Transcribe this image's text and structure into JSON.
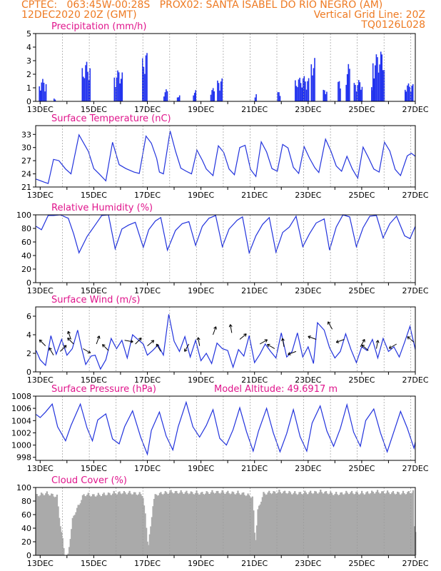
{
  "header": {
    "line1_left": "CPTEC:   063:45W-00:28S   PROX02: SANTA ISABEL DO RIO NEGRO (AM)",
    "line2_left": "12DEC2020 20Z (GMT)",
    "line2_right": "Vertical Grid Line: 20Z",
    "line3_right": "TQ0126L028"
  },
  "colors": {
    "header": "#ee7a22",
    "title": "#e0158c",
    "line": "#2233dd",
    "bar": "#2233ee",
    "cloud": "#aaaaaa",
    "grid": "#9a9a9a"
  },
  "x_ticks": [
    "13DEC",
    "15DEC",
    "17DEC",
    "19DEC",
    "21DEC",
    "23DEC",
    "25DEC",
    "27DEC"
  ],
  "chart_data": [
    {
      "type": "bar",
      "title": "Precipitation (mm/h)",
      "ylim": [
        0,
        5
      ],
      "yticks": [
        "0",
        "1",
        "2",
        "3",
        "4",
        "5"
      ],
      "x_range_days": [
        12.833,
        27.0
      ],
      "bursts": [
        [
          12.95,
          13.2,
          1.7
        ],
        [
          13.5,
          13.55,
          0.3
        ],
        [
          14.55,
          14.85,
          3.0
        ],
        [
          15.75,
          16.05,
          2.4
        ],
        [
          16.8,
          17.0,
          3.8
        ],
        [
          17.6,
          17.75,
          0.9
        ],
        [
          18.1,
          18.2,
          0.5
        ],
        [
          18.7,
          18.8,
          0.9
        ],
        [
          19.35,
          19.5,
          1.0
        ],
        [
          19.6,
          19.8,
          1.8
        ],
        [
          21.0,
          21.05,
          0.7
        ],
        [
          21.85,
          21.95,
          0.8
        ],
        [
          22.5,
          23.0,
          1.9
        ],
        [
          23.1,
          23.25,
          3.5
        ],
        [
          23.55,
          23.7,
          1.0
        ],
        [
          24.1,
          24.2,
          1.7
        ],
        [
          24.4,
          24.55,
          2.8
        ],
        [
          24.7,
          25.0,
          1.6
        ],
        [
          25.35,
          25.45,
          1.3
        ],
        [
          25.4,
          25.85,
          3.8
        ],
        [
          26.6,
          26.9,
          1.4
        ]
      ]
    },
    {
      "type": "line",
      "title": "Surface Temperature (nC)",
      "ylim": [
        21,
        35
      ],
      "yticks": [
        "21",
        "24",
        "27",
        "30",
        "33"
      ],
      "x": [
        12.85,
        13.15,
        13.3,
        13.5,
        13.7,
        13.95,
        14.15,
        14.45,
        14.8,
        15.0,
        15.2,
        15.45,
        15.7,
        15.95,
        16.2,
        16.5,
        16.7,
        16.95,
        17.15,
        17.35,
        17.45,
        17.6,
        17.85,
        18.05,
        18.25,
        18.45,
        18.65,
        18.85,
        19.05,
        19.2,
        19.45,
        19.65,
        19.85,
        20.05,
        20.25,
        20.45,
        20.65,
        20.85,
        21.05,
        21.25,
        21.45,
        21.65,
        21.85,
        22.05,
        22.25,
        22.45,
        22.65,
        22.85,
        23.05,
        23.25,
        23.4,
        23.65,
        23.85,
        24.05,
        24.25,
        24.45,
        24.65,
        24.85,
        25.05,
        25.25,
        25.45,
        25.65,
        25.85,
        26.05,
        26.25,
        26.45,
        26.7,
        26.85,
        27.0
      ],
      "y": [
        22.8,
        22.1,
        21.8,
        27.3,
        27.0,
        25.1,
        24.0,
        32.9,
        29.1,
        25.2,
        24.0,
        22.4,
        31.2,
        26.1,
        25.2,
        24.4,
        24.1,
        32.6,
        31.0,
        27.5,
        24.4,
        24.0,
        33.8,
        29.2,
        25.3,
        24.6,
        24.0,
        29.4,
        27.1,
        25.1,
        23.6,
        30.4,
        28.9,
        25.1,
        23.8,
        30.0,
        30.5,
        25.0,
        23.4,
        31.3,
        29.0,
        25.2,
        24.6,
        30.7,
        29.9,
        25.5,
        24.1,
        30.2,
        27.6,
        25.4,
        24.3,
        31.9,
        29.2,
        25.8,
        24.6,
        28.0,
        25.1,
        23.0,
        30.1,
        27.7,
        25.1,
        24.4,
        31.2,
        29.2,
        25.0,
        23.6,
        28.1,
        28.7,
        28.0
      ]
    },
    {
      "type": "line",
      "title": "Relative Humidity (%)",
      "ylim": [
        0,
        100
      ],
      "yticks": [
        "0",
        "20",
        "40",
        "60",
        "80",
        "100"
      ],
      "x": [
        12.85,
        13.05,
        13.3,
        13.5,
        13.75,
        14.05,
        14.25,
        14.45,
        14.75,
        15.05,
        15.3,
        15.55,
        15.8,
        16.05,
        16.3,
        16.55,
        16.85,
        17.05,
        17.3,
        17.5,
        17.75,
        18.05,
        18.3,
        18.55,
        18.8,
        19.05,
        19.3,
        19.55,
        19.8,
        20.05,
        20.35,
        20.55,
        20.8,
        21.05,
        21.3,
        21.55,
        21.8,
        22.05,
        22.3,
        22.55,
        22.8,
        23.05,
        23.3,
        23.6,
        23.8,
        24.05,
        24.3,
        24.55,
        24.8,
        25.05,
        25.3,
        25.55,
        25.8,
        26.05,
        26.3,
        26.6,
        26.8,
        27.0
      ],
      "y": [
        83,
        78,
        99,
        99,
        100,
        95,
        72,
        44,
        68,
        85,
        99,
        100,
        50,
        79,
        85,
        89,
        52,
        78,
        91,
        96,
        48,
        77,
        87,
        90,
        55,
        83,
        95,
        99,
        53,
        79,
        92,
        97,
        44,
        69,
        86,
        96,
        45,
        74,
        82,
        98,
        53,
        72,
        88,
        94,
        48,
        82,
        100,
        97,
        53,
        81,
        98,
        99,
        66,
        87,
        98,
        69,
        65,
        83
      ]
    },
    {
      "type": "line",
      "title": "Surface Wind (m/s)",
      "ylim": [
        0,
        7
      ],
      "yticks": [
        "0",
        "2",
        "4",
        "6"
      ],
      "x": [
        12.85,
        13.0,
        13.2,
        13.4,
        13.6,
        13.8,
        14.0,
        14.2,
        14.4,
        14.55,
        14.7,
        14.9,
        15.05,
        15.25,
        15.45,
        15.65,
        15.85,
        16.05,
        16.25,
        16.45,
        16.6,
        16.85,
        17.0,
        17.2,
        17.4,
        17.6,
        17.8,
        18.0,
        18.2,
        18.4,
        18.6,
        18.8,
        19.0,
        19.2,
        19.4,
        19.6,
        19.8,
        20.0,
        20.2,
        20.4,
        20.6,
        20.8,
        21.0,
        21.2,
        21.4,
        21.6,
        21.8,
        22.0,
        22.2,
        22.4,
        22.6,
        22.8,
        23.0,
        23.2,
        23.35,
        23.6,
        23.8,
        24.0,
        24.2,
        24.4,
        24.6,
        24.8,
        25.0,
        25.2,
        25.4,
        25.6,
        25.8,
        26.0,
        26.2,
        26.4,
        26.6,
        26.8,
        27.0
      ],
      "y": [
        2.3,
        1.3,
        0.7,
        3.9,
        1.9,
        3.5,
        1.8,
        2.5,
        4.5,
        2.5,
        0.8,
        1.7,
        1.8,
        0.3,
        1.3,
        3.6,
        2.5,
        3.4,
        1.5,
        4.0,
        3.6,
        3.0,
        1.8,
        2.3,
        2.9,
        1.8,
        6.2,
        3.3,
        2.2,
        3.8,
        1.6,
        3.4,
        1.2,
        2.0,
        0.9,
        3.1,
        2.5,
        2.3,
        0.5,
        2.4,
        1.7,
        3.9,
        1.0,
        1.9,
        3.0,
        2.2,
        1.5,
        4.2,
        1.6,
        2.2,
        4.2,
        1.6,
        2.7,
        0.9,
        5.3,
        4.5,
        2.6,
        1.5,
        2.2,
        4.1,
        2.4,
        1.0,
        2.7,
        2.3,
        3.5,
        1.5,
        3.6,
        2.2,
        2.7,
        1.6,
        3.2,
        4.9,
        2.4
      ],
      "arrows": [
        [
          13.2,
          2.8,
          135
        ],
        [
          13.5,
          1.8,
          120
        ],
        [
          13.75,
          2.2,
          45
        ],
        [
          14.15,
          3.5,
          110
        ],
        [
          14.25,
          3.0,
          135
        ],
        [
          14.6,
          2.5,
          330
        ],
        [
          15.1,
          3.0,
          70
        ],
        [
          15.55,
          2.3,
          135
        ],
        [
          16.15,
          3.4,
          350
        ],
        [
          16.55,
          3.0,
          45
        ],
        [
          17.0,
          2.8,
          40
        ],
        [
          17.5,
          2.2,
          120
        ],
        [
          18.55,
          3.0,
          240
        ],
        [
          18.95,
          2.8,
          100
        ],
        [
          19.45,
          4.0,
          70
        ],
        [
          20.15,
          4.2,
          100
        ],
        [
          20.45,
          3.5,
          40
        ],
        [
          21.2,
          3.0,
          30
        ],
        [
          21.75,
          2.5,
          150
        ],
        [
          22.1,
          2.7,
          100
        ],
        [
          22.55,
          2.2,
          200
        ],
        [
          23.3,
          3.5,
          160
        ],
        [
          23.9,
          4.6,
          120
        ],
        [
          24.35,
          3.5,
          200
        ],
        [
          24.95,
          2.7,
          60
        ],
        [
          25.25,
          2.3,
          140
        ],
        [
          25.55,
          2.5,
          80
        ],
        [
          26.3,
          3.0,
          210
        ],
        [
          26.95,
          3.2,
          140
        ]
      ]
    },
    {
      "type": "line",
      "title": "Surface Pressure (hPa)",
      "annotation": "Model Altitude: 49.6917 m",
      "ylim": [
        997.5,
        1008
      ],
      "yticks": [
        "998",
        "1000",
        "1002",
        "1004",
        "1006",
        "1008"
      ],
      "x": [
        12.85,
        13.0,
        13.2,
        13.45,
        13.65,
        13.95,
        14.15,
        14.5,
        14.75,
        14.95,
        15.15,
        15.45,
        15.7,
        15.95,
        16.15,
        16.45,
        16.75,
        17.0,
        17.15,
        17.45,
        17.7,
        17.95,
        18.15,
        18.45,
        18.7,
        18.95,
        19.2,
        19.45,
        19.7,
        19.95,
        20.2,
        20.45,
        20.7,
        20.95,
        21.15,
        21.45,
        21.7,
        21.95,
        22.2,
        22.45,
        22.7,
        22.95,
        23.15,
        23.45,
        23.7,
        23.95,
        24.2,
        24.45,
        24.7,
        24.95,
        25.15,
        25.45,
        25.7,
        25.95,
        26.2,
        26.45,
        26.7,
        26.95,
        27.0
      ],
      "y": [
        1005.0,
        1004.5,
        1005.4,
        1006.7,
        1003.0,
        1000.7,
        1003.2,
        1006.7,
        1002.8,
        1000.7,
        1004.1,
        1005.1,
        1001.0,
        1000.2,
        1003.0,
        1005.6,
        1001.3,
        998.5,
        1002.4,
        1005.4,
        1001.5,
        999.2,
        1003.0,
        1007.0,
        1003.0,
        1001.3,
        1003.2,
        1005.8,
        1001.1,
        1000.0,
        1002.5,
        1006.1,
        1002.2,
        999.0,
        1002.3,
        1006.0,
        1002.0,
        998.9,
        1001.9,
        1005.8,
        1001.4,
        999.0,
        1003.6,
        1006.4,
        1002.3,
        999.8,
        1002.7,
        1006.6,
        1002.1,
        999.8,
        1004.0,
        1005.9,
        1002.0,
        998.9,
        1002.2,
        1005.5,
        1002.8,
        999.5,
        1000.5
      ]
    },
    {
      "type": "area",
      "title": "Cloud Cover (%)",
      "ylim": [
        0,
        100
      ],
      "yticks": [
        "0",
        "20",
        "40",
        "60",
        "80",
        "100"
      ],
      "x": [
        12.85,
        13.2,
        13.4,
        13.6,
        13.7,
        13.9,
        14.0,
        14.2,
        14.6,
        15.0,
        15.5,
        16.0,
        16.5,
        16.8,
        16.9,
        17.0,
        17.1,
        17.2,
        17.3,
        17.5,
        17.9,
        18.5,
        19.0,
        19.5,
        20.0,
        20.5,
        20.9,
        21.0,
        21.1,
        21.3,
        21.5,
        22.0,
        22.5,
        23.0,
        23.5,
        24.0,
        24.5,
        25.0,
        25.5,
        26.0,
        26.5,
        26.9,
        26.95,
        27.0
      ],
      "y": [
        92,
        95,
        93,
        90,
        55,
        2,
        0,
        60,
        93,
        92,
        94,
        96,
        95,
        93,
        60,
        15,
        45,
        85,
        93,
        95,
        97,
        96,
        95,
        97,
        96,
        95,
        90,
        20,
        70,
        94,
        96,
        97,
        95,
        96,
        97,
        94,
        96,
        95,
        97,
        96,
        95,
        97,
        20,
        60
      ]
    }
  ]
}
